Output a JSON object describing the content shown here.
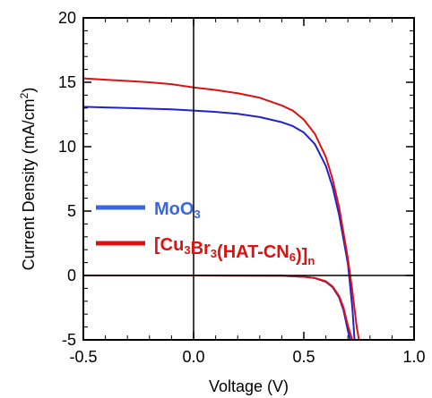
{
  "chart_data": {
    "type": "line",
    "xlabel": "Voltage (V)",
    "ylabel": {
      "prefix": "Current Density (mA/cm",
      "sup": "2",
      "suffix": ")"
    },
    "xlim": [
      -0.5,
      1.0
    ],
    "ylim": [
      -5,
      20
    ],
    "xticks": [
      -0.5,
      0.0,
      0.5,
      1.0
    ],
    "xtick_labels": [
      "-0.5",
      "0.0",
      "0.5",
      "1.0"
    ],
    "yticks": [
      -5,
      0,
      5,
      10,
      15,
      20
    ],
    "ytick_labels": [
      "-5",
      "0",
      "5",
      "10",
      "15",
      "20"
    ],
    "grid": false,
    "legend_position": "middle-left",
    "series": [
      {
        "name": "MoO3",
        "label_parts": [
          {
            "text": "MoO"
          },
          {
            "text": "3",
            "sub": true
          }
        ],
        "color": "#2222cc",
        "legend_color": "#3a66e0",
        "light": {
          "x": [
            -0.5,
            -0.4,
            -0.3,
            -0.2,
            -0.1,
            0.0,
            0.1,
            0.2,
            0.3,
            0.4,
            0.45,
            0.5,
            0.55,
            0.6,
            0.63,
            0.66,
            0.68,
            0.7,
            0.72,
            0.73
          ],
          "y": [
            13.1,
            13.05,
            13.0,
            12.95,
            12.9,
            12.8,
            12.7,
            12.55,
            12.3,
            11.9,
            11.6,
            11.1,
            10.2,
            8.5,
            6.9,
            4.7,
            2.8,
            0.9,
            -2.5,
            -5.0
          ]
        },
        "dark": {
          "x": [
            -0.5,
            0.0,
            0.4,
            0.5,
            0.55,
            0.6,
            0.63,
            0.66,
            0.68,
            0.7,
            0.71
          ],
          "y": [
            0.0,
            0.0,
            -0.02,
            -0.1,
            -0.2,
            -0.5,
            -0.9,
            -1.7,
            -2.7,
            -4.3,
            -5.0
          ]
        }
      },
      {
        "name": "[Cu3Br3(HAT-CN6)]n",
        "label_parts": [
          {
            "text": "[Cu"
          },
          {
            "text": "3",
            "sub": true
          },
          {
            "text": "Br"
          },
          {
            "text": "3",
            "sub": true
          },
          {
            "text": "(HAT-CN"
          },
          {
            "text": "6",
            "sub": true
          },
          {
            "text": ")]"
          },
          {
            "text": "n",
            "sub": true
          }
        ],
        "color": "#dd1111",
        "legend_color": "#dd1111",
        "light": {
          "x": [
            -0.5,
            -0.4,
            -0.3,
            -0.2,
            -0.1,
            0.0,
            0.1,
            0.2,
            0.3,
            0.4,
            0.45,
            0.5,
            0.55,
            0.6,
            0.63,
            0.66,
            0.68,
            0.7,
            0.72,
            0.74,
            0.75
          ],
          "y": [
            15.3,
            15.2,
            15.1,
            15.0,
            14.85,
            14.6,
            14.4,
            14.15,
            13.8,
            13.2,
            12.8,
            12.1,
            11.0,
            9.2,
            7.5,
            5.3,
            3.3,
            1.3,
            -1.2,
            -4.0,
            -5.0
          ]
        },
        "dark": {
          "x": [
            -0.5,
            0.0,
            0.4,
            0.5,
            0.55,
            0.6,
            0.63,
            0.66,
            0.68,
            0.7,
            0.72
          ],
          "y": [
            0.0,
            0.0,
            -0.02,
            -0.1,
            -0.2,
            -0.45,
            -0.85,
            -1.6,
            -2.5,
            -3.9,
            -5.0
          ]
        }
      }
    ]
  }
}
